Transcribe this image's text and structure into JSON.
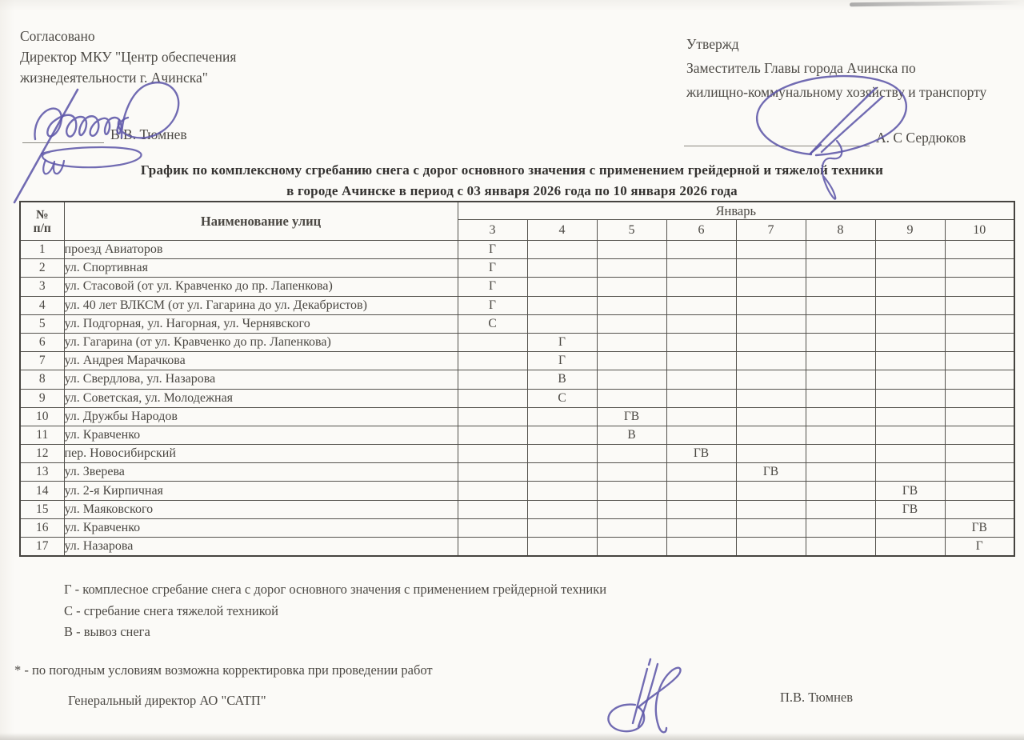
{
  "approval_left": {
    "label": "Согласовано",
    "line1": "Директор МКУ \"Центр обеспечения",
    "line2": "жизнедеятельности г. Ачинска\"",
    "signatory": "В.В. Тюмнев",
    "handwritten_mark": "и"
  },
  "approval_right": {
    "label": "Утвержд",
    "line1": "Заместитель Главы города Ачинска по",
    "line2": "жилищно-коммунальному хозяйству и транспорту",
    "signatory": "А. С Сердюков"
  },
  "title": {
    "line1": "График по комплексному сгребанию снега с дорог основного значения с применением грейдерной и тяжелой техники",
    "line2": "в городе Ачинске в период с 03 января 2026 года по 10 января 2026 года"
  },
  "table": {
    "col_no_line1": "№",
    "col_no_line2": "п/п",
    "col_street_header": "Наименование улиц",
    "month_header": "Январь",
    "days": [
      "3",
      "4",
      "5",
      "6",
      "7",
      "8",
      "9",
      "10"
    ],
    "rows": [
      {
        "no": "1",
        "street": "проезд Авиаторов",
        "marks": {
          "3": "Г"
        }
      },
      {
        "no": "2",
        "street": "ул. Спортивная",
        "marks": {
          "3": "Г"
        }
      },
      {
        "no": "3",
        "street": "ул. Стасовой (от ул. Кравченко до пр. Лапенкова)",
        "marks": {
          "3": "Г"
        }
      },
      {
        "no": "4",
        "street": "ул. 40 лет ВЛКСМ (от ул. Гагарина до ул. Декабристов)",
        "marks": {
          "3": "Г"
        }
      },
      {
        "no": "5",
        "street": "ул. Подгорная, ул. Нагорная, ул. Чернявского",
        "marks": {
          "3": "С"
        }
      },
      {
        "no": "6",
        "street": "ул. Гагарина (от ул. Кравченко до пр. Лапенкова)",
        "marks": {
          "4": "Г"
        }
      },
      {
        "no": "7",
        "street": "ул. Андрея Марачкова",
        "marks": {
          "4": "Г"
        }
      },
      {
        "no": "8",
        "street": "ул. Свердлова, ул. Назарова",
        "marks": {
          "4": "В"
        }
      },
      {
        "no": "9",
        "street": "ул. Советская, ул. Молодежная",
        "marks": {
          "4": "С"
        }
      },
      {
        "no": "10",
        "street": "ул. Дружбы Народов",
        "marks": {
          "5": "ГВ"
        }
      },
      {
        "no": "11",
        "street": "ул. Кравченко",
        "marks": {
          "5": "В"
        }
      },
      {
        "no": "12",
        "street": "пер. Новосибирский",
        "marks": {
          "6": "ГВ"
        }
      },
      {
        "no": "13",
        "street": "ул. Зверева",
        "marks": {
          "7": "ГВ"
        }
      },
      {
        "no": "14",
        "street": "ул. 2-я Кирпичная",
        "marks": {
          "9": "ГВ"
        }
      },
      {
        "no": "15",
        "street": "ул. Маяковского",
        "marks": {
          "9": "ГВ"
        }
      },
      {
        "no": "16",
        "street": "ул. Кравченко",
        "marks": {
          "10": "ГВ"
        }
      },
      {
        "no": "17",
        "street": "ул. Назарова",
        "marks": {
          "10": "Г"
        }
      }
    ]
  },
  "legend": [
    "Г - комплесное сгребание снега с дорог основного значения с применением грейдерной техники",
    "С - сгребание снега тяжелой техникой",
    "В - вывоз снега"
  ],
  "note": "* - по погодным условиям возможна корректировка при проведении работ",
  "footer": {
    "title": "Генеральный директор АО \"САТП\"",
    "signatory": "П.В. Тюмнев"
  },
  "colors": {
    "ink": "#4a4742",
    "signature_ink": "#5d56a9",
    "paper": "#fbfaf7",
    "table_border": "#54524d"
  }
}
